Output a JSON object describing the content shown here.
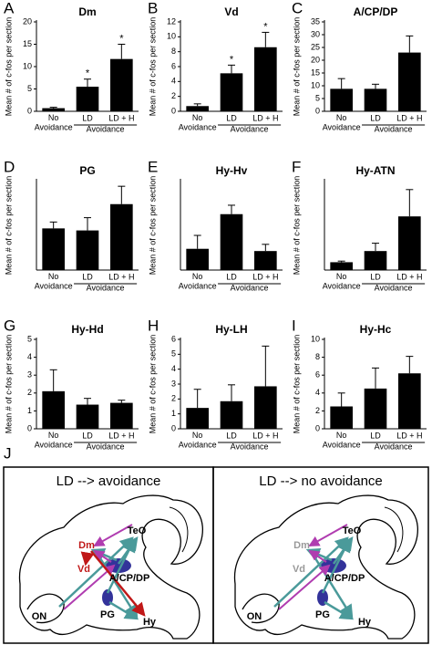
{
  "chart_data": [
    {
      "type": "bar",
      "panel": "A",
      "title": "Dm",
      "ylabel": "Mean # of c-fos per section",
      "categories": [
        "No\nAvoidance",
        "LD",
        "LD + H"
      ],
      "group_label": "Avoidance",
      "values": [
        0.7,
        5.5,
        11.7
      ],
      "errors": [
        0.2,
        1.7,
        3.3
      ],
      "annotations": [
        null,
        "*",
        "*"
      ],
      "color": "#000000",
      "ylim": [
        0,
        20
      ],
      "yticks": [
        0,
        5,
        10,
        15,
        20
      ]
    },
    {
      "type": "bar",
      "panel": "B",
      "title": "Vd",
      "ylabel": "Mean # of c-fos per section",
      "categories": [
        "No\nAvoidance",
        "LD",
        "LD + H"
      ],
      "group_label": "Avoidance",
      "values": [
        0.7,
        5.1,
        8.6
      ],
      "errors": [
        0.3,
        1.1,
        2.0
      ],
      "annotations": [
        null,
        "*",
        "*"
      ],
      "color": "#000000",
      "ylim": [
        0,
        12
      ],
      "yticks": [
        0,
        2,
        4,
        6,
        8,
        10,
        12
      ]
    },
    {
      "type": "bar",
      "panel": "C",
      "title": "A/CP/DP",
      "ylabel": "Mean # of c-fos per section",
      "categories": [
        "No\nAvoidance",
        "LD",
        "LD + H"
      ],
      "group_label": "Avoidance",
      "values": [
        8.8,
        8.8,
        23
      ],
      "errors": [
        4,
        1.8,
        6.5
      ],
      "color": "#000000",
      "ylim": [
        0,
        35
      ],
      "yticks": [
        0,
        5,
        10,
        15,
        20,
        25,
        30,
        35
      ]
    },
    {
      "type": "bar",
      "panel": "D",
      "title": "PG",
      "ylabel": "Mean # of c-fos per section",
      "categories": [
        "No\nAvoidance",
        "LD",
        "LD + H"
      ],
      "group_label": "Avoidance",
      "values": [
        16.3,
        15.5,
        25.8
      ],
      "errors": [
        2.5,
        5,
        7
      ],
      "color": "#000000",
      "ylim": [
        0,
        35
      ]
    },
    {
      "type": "bar",
      "panel": "E",
      "title": "Hy-Hv",
      "ylabel": "Mean # of c-fos per section",
      "categories": [
        "No\nAvoidance",
        "LD",
        "LD + H"
      ],
      "group_label": "Avoidance",
      "values": [
        0.19,
        0.5,
        0.17
      ],
      "errors": [
        0.12,
        0.08,
        0.06
      ],
      "color": "#000000",
      "ylim": [
        0,
        0.8
      ]
    },
    {
      "type": "bar",
      "panel": "F",
      "title": "Hy-ATN",
      "ylabel": "Mean # of c-fos per section",
      "categories": [
        "No\nAvoidance",
        "LD",
        "LD + H"
      ],
      "group_label": "Avoidance",
      "values": [
        0.7,
        1.7,
        4.8
      ],
      "errors": [
        0.1,
        0.7,
        2.4
      ],
      "color": "#000000",
      "ylim": [
        0,
        8
      ]
    },
    {
      "type": "bar",
      "panel": "G",
      "title": "Hy-Hd",
      "ylabel": "Mean # of c-fos per section",
      "categories": [
        "No\nAvoidance",
        "LD",
        "LD + H"
      ],
      "group_label": "Avoidance",
      "values": [
        2.1,
        1.35,
        1.45
      ],
      "errors": [
        1.2,
        0.35,
        0.15
      ],
      "color": "#000000",
      "ylim": [
        0,
        5
      ],
      "yticks": [
        0,
        1,
        2,
        3,
        4,
        5
      ]
    },
    {
      "type": "bar",
      "panel": "H",
      "title": "Hy-LH",
      "ylabel": "Mean # of c-fos per section",
      "categories": [
        "No\nAvoidance",
        "LD",
        "LD + H"
      ],
      "group_label": "Avoidance",
      "values": [
        1.4,
        1.85,
        2.85
      ],
      "errors": [
        1.25,
        1.1,
        2.7
      ],
      "color": "#000000",
      "ylim": [
        0,
        6
      ],
      "yticks": [
        0,
        1,
        2,
        3,
        4,
        5,
        6
      ]
    },
    {
      "type": "bar",
      "panel": "I",
      "title": "Hy-Hc",
      "ylabel": "Mean # of c-fos per section",
      "categories": [
        "No\nAvoidance",
        "LD",
        "LD + H"
      ],
      "group_label": "Avoidance",
      "values": [
        2.5,
        4.5,
        6.2
      ],
      "errors": [
        1.5,
        2.3,
        1.9
      ],
      "color": "#000000",
      "ylim": [
        0,
        10
      ],
      "yticks": [
        0,
        2,
        4,
        6,
        8,
        10
      ]
    }
  ],
  "diagram": {
    "panel": "J",
    "left": {
      "title": "LD --> avoidance",
      "labels": [
        "TeO",
        "Dm",
        "Vd",
        "A/CP/DP",
        "PG",
        "Hy",
        "ON"
      ]
    },
    "right": {
      "title": "LD --> no avoidance",
      "labels": [
        "TeO",
        "Dm",
        "Vd",
        "A/CP/DP",
        "PG",
        "Hy",
        "ON"
      ]
    }
  }
}
